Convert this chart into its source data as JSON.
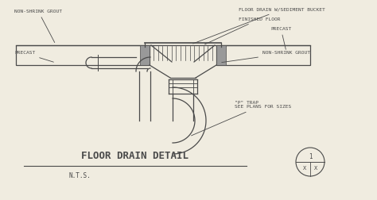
{
  "bg_color": "#f0ece0",
  "line_color": "#4a4a4a",
  "title": "FLOOR DRAIN DETAIL",
  "subtitle": "N.T.S.",
  "labels": {
    "floor_drain": "FLOOR DRAIN W/SEDIMENT BUCKET",
    "finished_floor": "FINISHED FLOOR",
    "precast_right": "PRECAST",
    "precast_left": "PRECAST",
    "non_shrink_left": "NON-SHRINK GROUT",
    "non_shrink_right": "NON-SHRINK GROUT",
    "p_trap": "\"P\" TRAP\nSEE PLANS FOR SIZES"
  }
}
